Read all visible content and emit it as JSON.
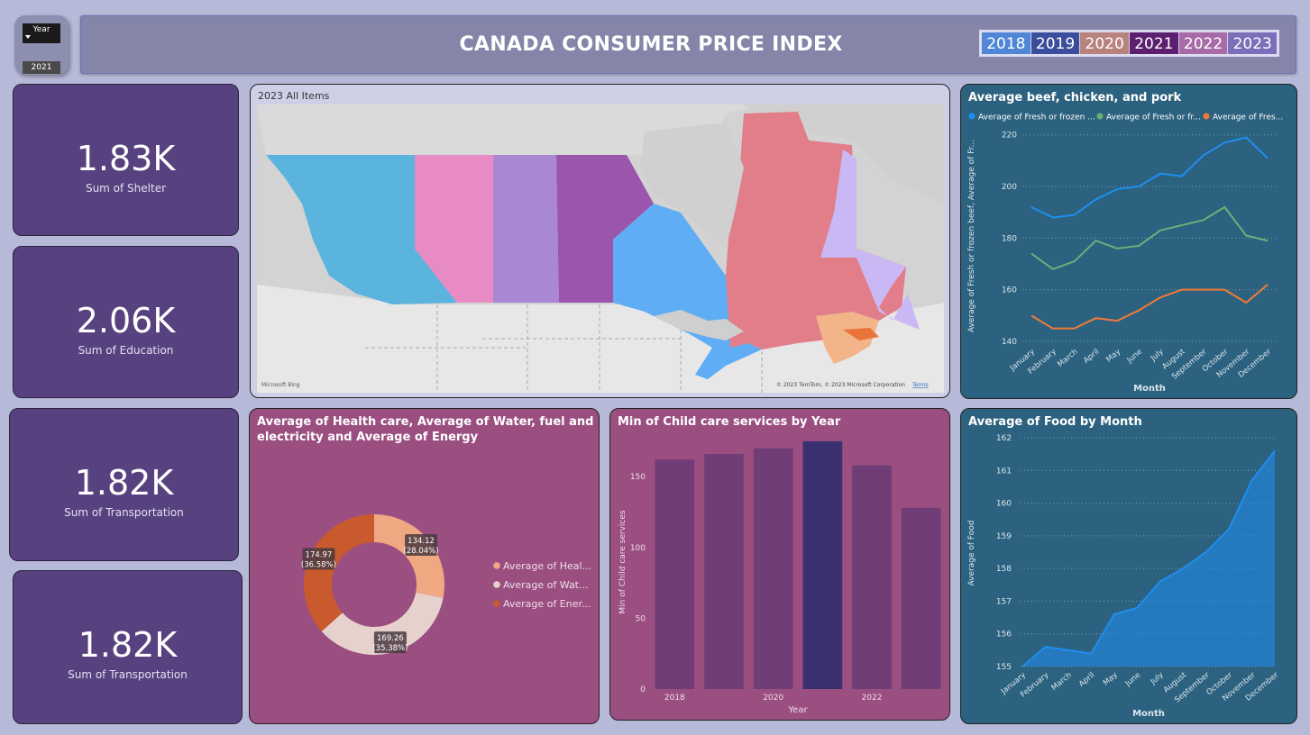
{
  "slicer": {
    "label": "Year",
    "value": "2021"
  },
  "header": {
    "title": "CANADA CONSUMER PRICE INDEX",
    "year_buttons": [
      {
        "label": "2018",
        "color": "#4f86d6"
      },
      {
        "label": "2019",
        "color": "#3b4e9e"
      },
      {
        "label": "2020",
        "color": "#b9837d"
      },
      {
        "label": "2021",
        "color": "#5d1f70"
      },
      {
        "label": "2022",
        "color": "#a86aa8"
      },
      {
        "label": "2023",
        "color": "#7a6fb8"
      }
    ]
  },
  "kpis": [
    {
      "value": "1.83K",
      "label": "Sum of Shelter"
    },
    {
      "value": "2.06K",
      "label": "Sum of Education"
    },
    {
      "value": "1.82K",
      "label": "Sum of Transportation"
    },
    {
      "value": "1.82K",
      "label": "Sum of Transportation"
    }
  ],
  "map": {
    "title": "2023 All Items",
    "attribution": "© 2023 TomTom, © 2023 Microsoft Corporation",
    "terms": "Terms",
    "logo": "Microsoft Bing"
  },
  "chart_data": [
    {
      "type": "line",
      "title": "Average beef, chicken, and pork",
      "xlabel": "Month",
      "ylabel": "Average of Fresh or frozen beef, Average of Fr...",
      "categories": [
        "January",
        "February",
        "March",
        "April",
        "May",
        "June",
        "July",
        "August",
        "September",
        "October",
        "November",
        "December"
      ],
      "ylim": [
        140,
        222
      ],
      "yticks": [
        140,
        160,
        180,
        200,
        220
      ],
      "legend": "top-left",
      "series": [
        {
          "name": "Average of Fresh or frozen ...",
          "color": "#1f8ef1",
          "values": [
            192,
            188,
            189,
            195,
            199,
            200,
            205,
            204,
            212,
            217,
            219,
            211
          ]
        },
        {
          "name": "Average of Fresh or fr...",
          "color": "#6bb07a",
          "values": [
            174,
            168,
            171,
            179,
            176,
            177,
            183,
            185,
            187,
            192,
            181,
            179
          ]
        },
        {
          "name": "Average of Fres...",
          "color": "#f07a36",
          "values": [
            150,
            145,
            145,
            149,
            148,
            152,
            157,
            160,
            160,
            160,
            155,
            162
          ]
        }
      ]
    },
    {
      "type": "pie",
      "title": "Average of Health care, Average of Water, fuel and electricity and Average of Energy",
      "title_lines": [
        "Average of Health care, Average of Water, fuel and",
        "electricity and Average of Energy"
      ],
      "legend": "right",
      "slices": [
        {
          "name": "Average of Heal...",
          "value": 134.12,
          "label": "134.12",
          "pct": "(28.04%)",
          "color": "#f0a883"
        },
        {
          "name": "Average of Wat...",
          "value": 169.26,
          "label": "169.26",
          "pct": "(35.38%)",
          "color": "#e6d1cd"
        },
        {
          "name": "Average of Ener...",
          "value": 174.97,
          "label": "174.97",
          "pct": "(36.58%)",
          "color": "#c85a2e"
        }
      ]
    },
    {
      "type": "bar",
      "title": "Min of Child care services by Year",
      "xlabel": "Year",
      "ylabel": "Min of Child care services",
      "categories": [
        "2018",
        "2019",
        "2020",
        "2021",
        "2022",
        "2023"
      ],
      "xticks": [
        "2018",
        "2020",
        "2022"
      ],
      "values": [
        162,
        166,
        170,
        175,
        158,
        128
      ],
      "highlight_index": 3,
      "ylim": [
        0,
        180
      ],
      "yticks": [
        0,
        50,
        100,
        150
      ],
      "colors": {
        "bar": "#713d77",
        "highlight": "#3a3070"
      }
    },
    {
      "type": "area",
      "title": "Average of Food by Month",
      "xlabel": "Month",
      "ylabel": "Average of Food",
      "categories": [
        "January",
        "February",
        "March",
        "April",
        "May",
        "June",
        "July",
        "August",
        "September",
        "October",
        "November",
        "December"
      ],
      "ylim": [
        155,
        162
      ],
      "yticks": [
        155,
        156,
        157,
        158,
        159,
        160,
        161,
        162
      ],
      "values": [
        155.0,
        155.6,
        155.5,
        155.4,
        156.6,
        156.8,
        157.6,
        158.0,
        158.5,
        159.2,
        160.7,
        161.6
      ],
      "color": "#1f8ef1"
    }
  ]
}
